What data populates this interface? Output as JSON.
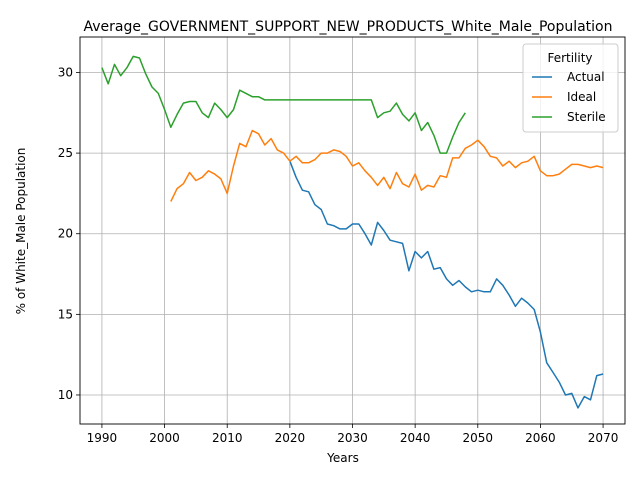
{
  "chart_data": {
    "type": "line",
    "title": "Average_GOVERNMENT_SUPPORT_NEW_PRODUCTS_White_Male_Population",
    "xlabel": "Years",
    "ylabel": "% of White_Male Population",
    "xlim": [
      1986.5,
      2073.5
    ],
    "ylim": [
      8.2,
      32.2
    ],
    "xticks": [
      1990,
      2000,
      2010,
      2020,
      2030,
      2040,
      2050,
      2060,
      2070
    ],
    "yticks": [
      10,
      15,
      20,
      25,
      30
    ],
    "grid": true,
    "legend": {
      "title": "Fertility",
      "placement": "top-right"
    },
    "series": [
      {
        "name": "Actual",
        "color": "#1f77b4",
        "points": [
          [
            2020,
            24.5
          ],
          [
            2021,
            23.5
          ],
          [
            2022,
            22.7
          ],
          [
            2023,
            22.6
          ],
          [
            2024,
            21.8
          ],
          [
            2025,
            21.5
          ],
          [
            2026,
            20.6
          ],
          [
            2027,
            20.5
          ],
          [
            2028,
            20.3
          ],
          [
            2029,
            20.3
          ],
          [
            2030,
            20.6
          ],
          [
            2031,
            20.6
          ],
          [
            2032,
            20.0
          ],
          [
            2033,
            19.3
          ],
          [
            2034,
            20.7
          ],
          [
            2035,
            20.2
          ],
          [
            2036,
            19.6
          ],
          [
            2037,
            19.5
          ],
          [
            2038,
            19.4
          ],
          [
            2039,
            17.7
          ],
          [
            2040,
            18.9
          ],
          [
            2041,
            18.5
          ],
          [
            2042,
            18.9
          ],
          [
            2043,
            17.8
          ],
          [
            2044,
            17.9
          ],
          [
            2045,
            17.2
          ],
          [
            2046,
            16.8
          ],
          [
            2047,
            17.1
          ],
          [
            2048,
            16.7
          ],
          [
            2049,
            16.4
          ],
          [
            2050,
            16.5
          ],
          [
            2051,
            16.4
          ],
          [
            2052,
            16.4
          ],
          [
            2053,
            17.2
          ],
          [
            2054,
            16.8
          ],
          [
            2055,
            16.2
          ],
          [
            2056,
            15.5
          ],
          [
            2057,
            16.0
          ],
          [
            2058,
            15.7
          ],
          [
            2059,
            15.3
          ],
          [
            2060,
            13.9
          ],
          [
            2061,
            12.0
          ],
          [
            2062,
            11.4
          ],
          [
            2063,
            10.8
          ],
          [
            2064,
            10.0
          ],
          [
            2065,
            10.1
          ],
          [
            2066,
            9.2
          ],
          [
            2067,
            9.9
          ],
          [
            2068,
            9.7
          ],
          [
            2069,
            11.2
          ],
          [
            2070,
            11.3
          ]
        ]
      },
      {
        "name": "Ideal",
        "color": "#ff7f0e",
        "points": [
          [
            2001,
            22.0
          ],
          [
            2002,
            22.8
          ],
          [
            2003,
            23.1
          ],
          [
            2004,
            23.8
          ],
          [
            2005,
            23.3
          ],
          [
            2006,
            23.5
          ],
          [
            2007,
            23.9
          ],
          [
            2008,
            23.7
          ],
          [
            2009,
            23.4
          ],
          [
            2010,
            22.5
          ],
          [
            2011,
            24.2
          ],
          [
            2012,
            25.6
          ],
          [
            2013,
            25.4
          ],
          [
            2014,
            26.4
          ],
          [
            2015,
            26.2
          ],
          [
            2016,
            25.5
          ],
          [
            2017,
            25.9
          ],
          [
            2018,
            25.2
          ],
          [
            2019,
            25.0
          ],
          [
            2020,
            24.5
          ],
          [
            2021,
            24.8
          ],
          [
            2022,
            24.4
          ],
          [
            2023,
            24.4
          ],
          [
            2024,
            24.6
          ],
          [
            2025,
            25.0
          ],
          [
            2026,
            25.0
          ],
          [
            2027,
            25.2
          ],
          [
            2028,
            25.1
          ],
          [
            2029,
            24.8
          ],
          [
            2030,
            24.2
          ],
          [
            2031,
            24.4
          ],
          [
            2032,
            23.9
          ],
          [
            2033,
            23.5
          ],
          [
            2034,
            23.0
          ],
          [
            2035,
            23.5
          ],
          [
            2036,
            22.8
          ],
          [
            2037,
            23.8
          ],
          [
            2038,
            23.1
          ],
          [
            2039,
            22.9
          ],
          [
            2040,
            23.7
          ],
          [
            2041,
            22.7
          ],
          [
            2042,
            23.0
          ],
          [
            2043,
            22.9
          ],
          [
            2044,
            23.6
          ],
          [
            2045,
            23.5
          ],
          [
            2046,
            24.7
          ],
          [
            2047,
            24.7
          ],
          [
            2048,
            25.3
          ],
          [
            2049,
            25.5
          ],
          [
            2050,
            25.8
          ],
          [
            2051,
            25.4
          ],
          [
            2052,
            24.8
          ],
          [
            2053,
            24.7
          ],
          [
            2054,
            24.2
          ],
          [
            2055,
            24.5
          ],
          [
            2056,
            24.1
          ],
          [
            2057,
            24.4
          ],
          [
            2058,
            24.5
          ],
          [
            2059,
            24.8
          ],
          [
            2060,
            23.9
          ],
          [
            2061,
            23.6
          ],
          [
            2062,
            23.6
          ],
          [
            2063,
            23.7
          ],
          [
            2064,
            24.0
          ],
          [
            2065,
            24.3
          ],
          [
            2066,
            24.3
          ],
          [
            2067,
            24.2
          ],
          [
            2068,
            24.1
          ],
          [
            2069,
            24.2
          ],
          [
            2070,
            24.1
          ]
        ]
      },
      {
        "name": "Sterile",
        "color": "#2ca02c",
        "points": [
          [
            1990,
            30.3
          ],
          [
            1991,
            29.3
          ],
          [
            1992,
            30.5
          ],
          [
            1993,
            29.8
          ],
          [
            1994,
            30.3
          ],
          [
            1995,
            31.0
          ],
          [
            1996,
            30.9
          ],
          [
            1997,
            29.9
          ],
          [
            1998,
            29.1
          ],
          [
            1999,
            28.7
          ],
          [
            2000,
            27.7
          ],
          [
            2001,
            26.6
          ],
          [
            2002,
            27.4
          ],
          [
            2003,
            28.1
          ],
          [
            2004,
            28.2
          ],
          [
            2005,
            28.2
          ],
          [
            2006,
            27.5
          ],
          [
            2007,
            27.2
          ],
          [
            2008,
            28.1
          ],
          [
            2009,
            27.7
          ],
          [
            2010,
            27.2
          ],
          [
            2011,
            27.7
          ],
          [
            2012,
            28.9
          ],
          [
            2013,
            28.7
          ],
          [
            2014,
            28.5
          ],
          [
            2015,
            28.5
          ],
          [
            2016,
            28.3
          ],
          [
            2017,
            28.3
          ],
          [
            2018,
            28.3
          ],
          [
            2019,
            28.3
          ],
          [
            2020,
            28.3
          ],
          [
            2021,
            28.3
          ],
          [
            2022,
            28.3
          ],
          [
            2023,
            28.3
          ],
          [
            2024,
            28.3
          ],
          [
            2025,
            28.3
          ],
          [
            2026,
            28.3
          ],
          [
            2027,
            28.3
          ],
          [
            2028,
            28.3
          ],
          [
            2029,
            28.3
          ],
          [
            2030,
            28.3
          ],
          [
            2031,
            28.3
          ],
          [
            2032,
            28.3
          ],
          [
            2033,
            28.3
          ],
          [
            2034,
            27.2
          ],
          [
            2035,
            27.5
          ],
          [
            2036,
            27.6
          ],
          [
            2037,
            28.1
          ],
          [
            2038,
            27.4
          ],
          [
            2039,
            27.0
          ],
          [
            2040,
            27.5
          ],
          [
            2041,
            26.4
          ],
          [
            2042,
            26.9
          ],
          [
            2043,
            26.1
          ],
          [
            2044,
            25.0
          ],
          [
            2045,
            25.0
          ],
          [
            2046,
            26.0
          ],
          [
            2047,
            26.9
          ],
          [
            2048,
            27.5
          ]
        ]
      }
    ]
  }
}
